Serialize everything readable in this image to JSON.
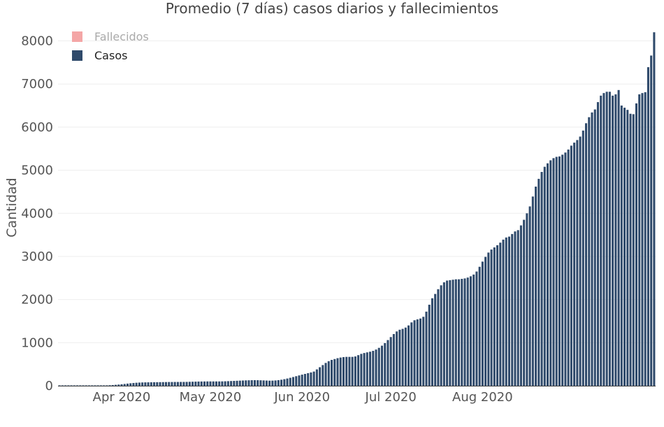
{
  "chart_data": {
    "type": "bar",
    "title": "Promedio (7 días) casos diarios y fallecimientos",
    "xlabel": "",
    "ylabel": "Cantidad",
    "ylim": [
      0,
      8300
    ],
    "yticks": [
      0,
      1000,
      2000,
      3000,
      4000,
      5000,
      6000,
      7000,
      8000
    ],
    "ytick_labels": [
      "0",
      "1000",
      "2000",
      "3000",
      "4000",
      "5000",
      "6000",
      "7000",
      "8000"
    ],
    "xtick_labels": [
      "Apr 2020",
      "May 2020",
      "Jun 2020",
      "Jul 2020",
      "Aug 2020"
    ],
    "xtick_day_index": [
      21,
      51,
      82,
      112,
      143
    ],
    "grid": true,
    "legend": {
      "position": "top-left",
      "entries": [
        {
          "label": "Fallecidos",
          "color": "#f4a6a6",
          "hidden": true
        },
        {
          "label": "Casos",
          "color": "#2f4a6b",
          "hidden": false
        }
      ]
    },
    "series": [
      {
        "name": "Casos",
        "color": "#2f4a6b",
        "values": [
          0,
          0,
          0,
          0,
          0,
          0,
          0,
          0,
          0,
          1,
          2,
          3,
          4,
          5,
          6,
          8,
          10,
          13,
          17,
          22,
          28,
          35,
          42,
          50,
          58,
          64,
          70,
          74,
          77,
          79,
          80,
          81,
          82,
          83,
          84,
          85,
          86,
          87,
          87,
          88,
          88,
          89,
          89,
          90,
          92,
          94,
          96,
          98,
          99,
          100,
          101,
          101,
          101,
          101,
          101,
          102,
          104,
          107,
          110,
          113,
          116,
          119,
          122,
          125,
          127,
          129,
          130,
          129,
          127,
          124,
          121,
          118,
          119,
          123,
          130,
          140,
          153,
          168,
          185,
          203,
          222,
          240,
          258,
          275,
          292,
          309,
          330,
          380,
          430,
          480,
          530,
          570,
          600,
          620,
          640,
          655,
          665,
          670,
          670,
          670,
          680,
          710,
          740,
          760,
          775,
          790,
          810,
          840,
          880,
          930,
          990,
          1060,
          1130,
          1200,
          1260,
          1300,
          1320,
          1350,
          1400,
          1470,
          1520,
          1540,
          1560,
          1600,
          1720,
          1880,
          2030,
          2130,
          2240,
          2330,
          2400,
          2440,
          2450,
          2460,
          2470,
          2470,
          2480,
          2490,
          2510,
          2540,
          2580,
          2650,
          2760,
          2880,
          2990,
          3090,
          3160,
          3210,
          3260,
          3320,
          3390,
          3440,
          3460,
          3520,
          3580,
          3610,
          3720,
          3850,
          4000,
          4160,
          4390,
          4620,
          4800,
          4960,
          5080,
          5160,
          5230,
          5280,
          5310,
          5320,
          5360,
          5410,
          5480,
          5570,
          5640,
          5700,
          5780,
          5920,
          6090,
          6230,
          6340,
          6410,
          6580,
          6730,
          6790,
          6820,
          6820,
          6730,
          6760,
          6860,
          6500,
          6450,
          6400,
          6310,
          6300,
          6550,
          6760,
          6790,
          6810,
          7390,
          7660,
          8200
        ]
      }
    ]
  }
}
